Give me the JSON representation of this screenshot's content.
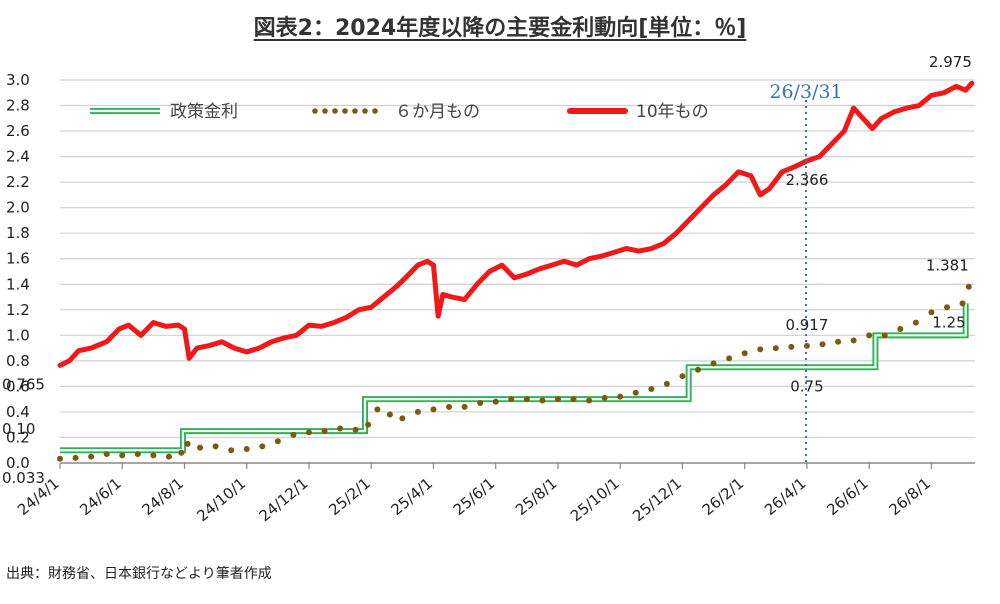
{
  "title": "図表2：2024年度以降の主要金利動向[単位：％]",
  "source": "出典：財務省、日本銀行などより筆者作成",
  "chart_data": {
    "type": "line",
    "ylim": [
      0,
      3.0
    ],
    "xlim": [
      0,
      29.4
    ],
    "yticks": [
      "0.0",
      "0.2",
      "0.4",
      "0.6",
      "0.8",
      "1.0",
      "1.2",
      "1.4",
      "1.6",
      "1.8",
      "2.0",
      "2.2",
      "2.4",
      "2.6",
      "2.8",
      "3.0"
    ],
    "xticks": [
      {
        "label": "24/4/1",
        "x": 0
      },
      {
        "label": "24/6/1",
        "x": 2
      },
      {
        "label": "24/8/1",
        "x": 4
      },
      {
        "label": "24/10/1",
        "x": 6
      },
      {
        "label": "24/12/1",
        "x": 8
      },
      {
        "label": "25/2/1",
        "x": 10
      },
      {
        "label": "25/4/1",
        "x": 12
      },
      {
        "label": "25/6/1",
        "x": 14
      },
      {
        "label": "25/8/1",
        "x": 16
      },
      {
        "label": "25/10/1",
        "x": 18
      },
      {
        "label": "25/12/1",
        "x": 20
      },
      {
        "label": "26/2/1",
        "x": 22
      },
      {
        "label": "26/4/1",
        "x": 24
      },
      {
        "label": "26/6/1",
        "x": 26
      },
      {
        "label": "26/8/1",
        "x": 28
      }
    ],
    "grid": true,
    "legend": "top",
    "series": [
      {
        "name": "政策金利",
        "style": "double-line",
        "color": "#2db35a",
        "x": [
          0,
          3.95,
          3.95,
          9.8,
          9.8,
          20.2,
          20.2,
          26.2,
          26.2,
          29.1,
          29.1
        ],
        "y": [
          0.1,
          0.1,
          0.25,
          0.25,
          0.5,
          0.5,
          0.75,
          0.75,
          1.0,
          1.0,
          1.25
        ]
      },
      {
        "name": "６か月もの",
        "style": "dots",
        "color": "#7a5a10",
        "x": [
          0,
          0.5,
          1.0,
          1.5,
          2.0,
          2.5,
          3.0,
          3.5,
          3.9,
          4.1,
          4.5,
          5.0,
          5.5,
          6.0,
          6.5,
          7.0,
          7.5,
          8.0,
          8.5,
          9.0,
          9.5,
          9.9,
          10.2,
          10.6,
          11.0,
          11.5,
          12.0,
          12.5,
          13.0,
          13.5,
          14.0,
          14.5,
          15.0,
          15.5,
          16.0,
          16.5,
          17.0,
          17.5,
          18.0,
          18.5,
          19.0,
          19.5,
          20.0,
          20.5,
          21.0,
          21.5,
          22.0,
          22.5,
          23.0,
          23.5,
          24.0,
          24.5,
          25.0,
          25.5,
          26.0,
          26.5,
          27.0,
          27.5,
          28.0,
          28.5,
          29.0,
          29.2
        ],
        "y": [
          0.033,
          0.04,
          0.05,
          0.07,
          0.06,
          0.07,
          0.06,
          0.05,
          0.08,
          0.15,
          0.12,
          0.13,
          0.1,
          0.11,
          0.13,
          0.17,
          0.22,
          0.24,
          0.25,
          0.27,
          0.26,
          0.3,
          0.42,
          0.38,
          0.35,
          0.4,
          0.42,
          0.44,
          0.44,
          0.47,
          0.48,
          0.5,
          0.5,
          0.49,
          0.5,
          0.5,
          0.49,
          0.51,
          0.52,
          0.55,
          0.58,
          0.62,
          0.68,
          0.73,
          0.78,
          0.82,
          0.86,
          0.89,
          0.9,
          0.91,
          0.917,
          0.93,
          0.95,
          0.96,
          1.0,
          1.0,
          1.05,
          1.1,
          1.18,
          1.22,
          1.25,
          1.381
        ]
      },
      {
        "name": "10年もの",
        "style": "thick-line",
        "color": "#f01818",
        "x": [
          0,
          0.3,
          0.6,
          1.0,
          1.5,
          1.9,
          2.2,
          2.6,
          3.0,
          3.4,
          3.8,
          4.0,
          4.15,
          4.4,
          4.8,
          5.2,
          5.6,
          6.0,
          6.4,
          6.8,
          7.2,
          7.6,
          8.0,
          8.4,
          8.8,
          9.2,
          9.6,
          10.0,
          10.4,
          10.8,
          11.1,
          11.5,
          11.8,
          12.0,
          12.15,
          12.3,
          12.6,
          13.0,
          13.4,
          13.8,
          14.2,
          14.6,
          15.0,
          15.4,
          15.8,
          16.2,
          16.6,
          17.0,
          17.4,
          17.8,
          18.2,
          18.6,
          19.0,
          19.4,
          19.8,
          20.2,
          20.6,
          21.0,
          21.4,
          21.8,
          22.2,
          22.5,
          22.8,
          23.2,
          23.6,
          24.0,
          24.4,
          24.8,
          25.2,
          25.5,
          25.8,
          26.1,
          26.4,
          26.8,
          27.2,
          27.6,
          28.0,
          28.4,
          28.8,
          29.1,
          29.3
        ],
        "y": [
          0.765,
          0.8,
          0.88,
          0.9,
          0.95,
          1.05,
          1.08,
          1.0,
          1.1,
          1.07,
          1.08,
          1.05,
          0.82,
          0.9,
          0.92,
          0.95,
          0.9,
          0.87,
          0.9,
          0.95,
          0.98,
          1.0,
          1.08,
          1.07,
          1.1,
          1.14,
          1.2,
          1.22,
          1.3,
          1.38,
          1.45,
          1.55,
          1.58,
          1.55,
          1.15,
          1.32,
          1.3,
          1.28,
          1.4,
          1.5,
          1.55,
          1.45,
          1.48,
          1.52,
          1.55,
          1.58,
          1.55,
          1.6,
          1.62,
          1.65,
          1.68,
          1.66,
          1.68,
          1.72,
          1.8,
          1.9,
          2.0,
          2.1,
          2.18,
          2.28,
          2.25,
          2.1,
          2.15,
          2.28,
          2.32,
          2.366,
          2.4,
          2.5,
          2.6,
          2.78,
          2.7,
          2.62,
          2.7,
          2.75,
          2.78,
          2.8,
          2.88,
          2.9,
          2.95,
          2.92,
          2.975
        ]
      }
    ],
    "labels": [
      {
        "text": "2.975",
        "x": 29.3,
        "y": 2.975,
        "pos": "above"
      },
      {
        "text": "2.366",
        "x": 24.0,
        "y": 2.366,
        "pos": "below"
      },
      {
        "text": "1.381",
        "x": 29.2,
        "y": 1.381,
        "pos": "above"
      },
      {
        "text": "0.917",
        "x": 24.0,
        "y": 0.917,
        "pos": "above"
      },
      {
        "text": "1.25",
        "x": 29.1,
        "y": 1.25,
        "pos": "below"
      },
      {
        "text": "0.75",
        "x": 24.0,
        "y": 0.75,
        "pos": "below"
      },
      {
        "text": "0.765",
        "x": 0,
        "y": 0.765,
        "pos": "below"
      },
      {
        "text": "0.10",
        "x": 0,
        "y": 0.1,
        "pos": "above"
      },
      {
        "text": "0.033",
        "x": 0,
        "y": 0.033,
        "pos": "below"
      }
    ],
    "annotation": {
      "text": "26/3/31",
      "x": 23.97,
      "color": "#3b6fc4"
    }
  }
}
